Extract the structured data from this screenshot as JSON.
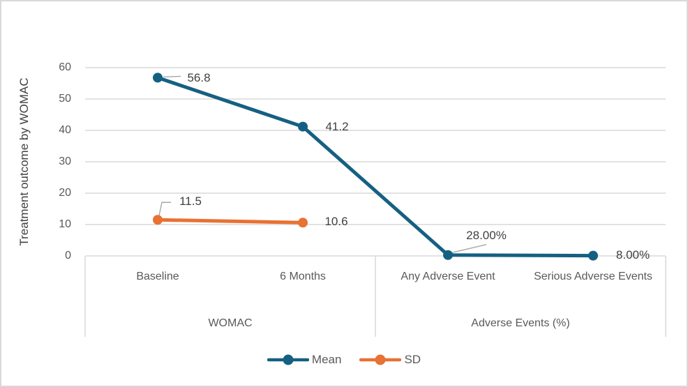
{
  "figure": {
    "background": "#FFFFFF",
    "border_color": "#D9D9D9"
  },
  "chart_data": {
    "type": "line",
    "title": "",
    "ylabel": "Treatment outcome by WOMAC",
    "xlabel": "",
    "categories": [
      "Baseline",
      "6 Months",
      "Any Adverse Event",
      "Serious Adverse Events"
    ],
    "category_groups": [
      {
        "label": "WOMAC",
        "span": [
          0,
          1
        ]
      },
      {
        "label": "Adverse Events (%)",
        "span": [
          2,
          3
        ]
      }
    ],
    "ylim": [
      0,
      60
    ],
    "yticks": [
      0,
      10,
      20,
      30,
      40,
      50,
      60
    ],
    "grid": true,
    "legend_position": "bottom",
    "series": [
      {
        "name": "Mean",
        "color": "#156082",
        "values": [
          56.8,
          41.2,
          0.28,
          0.08
        ],
        "point_labels": [
          "56.8",
          "41.2",
          "28.00%",
          "8.00%"
        ]
      },
      {
        "name": "SD",
        "color": "#E97132",
        "values": [
          11.5,
          10.6,
          null,
          null
        ],
        "point_labels": [
          "11.5",
          "10.6",
          null,
          null
        ]
      }
    ],
    "colors": {
      "gridline": "#D9D9D9",
      "axis_text": "#595959",
      "data_label_text": "#404040",
      "leader_line": "#A6A6A6"
    }
  }
}
